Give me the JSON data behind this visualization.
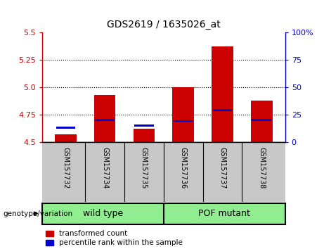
{
  "title": "GDS2619 / 1635026_at",
  "samples": [
    "GSM157732",
    "GSM157734",
    "GSM157735",
    "GSM157736",
    "GSM157737",
    "GSM157738"
  ],
  "transformed_counts": [
    4.57,
    4.93,
    4.62,
    5.0,
    5.37,
    4.88
  ],
  "percentile_ranks": [
    13,
    20,
    15,
    19,
    29,
    20
  ],
  "ylim_left": [
    4.5,
    5.5
  ],
  "ylim_right": [
    0,
    100
  ],
  "yticks_left": [
    4.5,
    4.75,
    5.0,
    5.25,
    5.5
  ],
  "yticks_right": [
    0,
    25,
    50,
    75,
    100
  ],
  "bar_color_red": "#CC0000",
  "bar_color_blue": "#0000CC",
  "grid_color": "black",
  "axis_left_color": "#CC0000",
  "axis_right_color": "#0000CC",
  "background_plot": "white",
  "background_xtick": "#C8C8C8",
  "background_group": "#90EE90",
  "group_labels": [
    "wild type",
    "POF mutant"
  ],
  "group_split": 3
}
